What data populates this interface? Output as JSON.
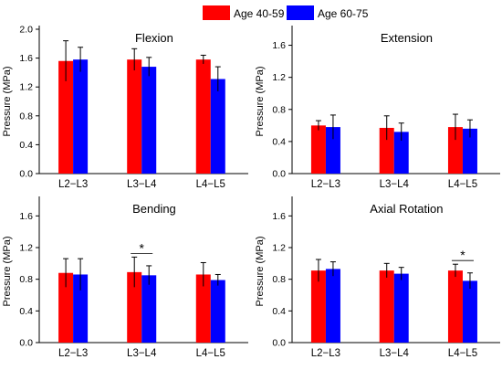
{
  "legend": {
    "items": [
      {
        "label": "Age 40-59",
        "color": "#ff0000"
      },
      {
        "label": "Age 60-75",
        "color": "#0000ff"
      }
    ]
  },
  "chart_data": [
    {
      "type": "bar",
      "title": "Flexion",
      "ylabel": "Pressure (MPa)",
      "ylim": [
        0,
        2.0
      ],
      "yticks": [
        "0.0",
        "0.4",
        "0.8",
        "1.2",
        "1.6",
        "2.0"
      ],
      "categories": [
        "L2−L3",
        "L3−L4",
        "L4−L5"
      ],
      "series": [
        {
          "name": "Age 40-59",
          "values": [
            1.56,
            1.58,
            1.58
          ],
          "errors": [
            0.28,
            0.15,
            0.06
          ]
        },
        {
          "name": "Age 60-75",
          "values": [
            1.58,
            1.48,
            1.31
          ],
          "errors": [
            0.17,
            0.13,
            0.17
          ]
        }
      ],
      "significance": []
    },
    {
      "type": "bar",
      "title": "Extension",
      "ylabel": "Pressure (MPa)",
      "ylim": [
        0,
        1.8
      ],
      "yticks": [
        "0.0",
        "0.4",
        "0.8",
        "1.2",
        "1.6"
      ],
      "categories": [
        "L2−L3",
        "L3−L4",
        "L4−L5"
      ],
      "series": [
        {
          "name": "Age 40-59",
          "values": [
            0.6,
            0.57,
            0.58
          ],
          "errors": [
            0.06,
            0.15,
            0.16
          ]
        },
        {
          "name": "Age 60-75",
          "values": [
            0.58,
            0.52,
            0.56
          ],
          "errors": [
            0.15,
            0.11,
            0.11
          ]
        }
      ],
      "significance": []
    },
    {
      "type": "bar",
      "title": "Bending",
      "ylabel": "Pressure (MPa)",
      "ylim": [
        0,
        1.8
      ],
      "yticks": [
        "0.0",
        "0.4",
        "0.8",
        "1.2",
        "1.6"
      ],
      "categories": [
        "L2−L3",
        "L3−L4",
        "L4−L5"
      ],
      "series": [
        {
          "name": "Age 40-59",
          "values": [
            0.88,
            0.89,
            0.86
          ],
          "errors": [
            0.18,
            0.19,
            0.15
          ]
        },
        {
          "name": "Age 60-75",
          "values": [
            0.86,
            0.85,
            0.79
          ],
          "errors": [
            0.2,
            0.12,
            0.07
          ]
        }
      ],
      "significance": [
        {
          "category_index": 1,
          "label": "*"
        }
      ]
    },
    {
      "type": "bar",
      "title": "Axial Rotation",
      "ylabel": "Pressure (MPa)",
      "ylim": [
        0,
        1.8
      ],
      "yticks": [
        "0.0",
        "0.4",
        "0.8",
        "1.2",
        "1.6"
      ],
      "categories": [
        "L2−L3",
        "L3−L4",
        "L4−L5"
      ],
      "series": [
        {
          "name": "Age 40-59",
          "values": [
            0.91,
            0.91,
            0.91
          ],
          "errors": [
            0.14,
            0.09,
            0.08
          ]
        },
        {
          "name": "Age 60-75",
          "values": [
            0.93,
            0.87,
            0.78
          ],
          "errors": [
            0.09,
            0.08,
            0.1
          ]
        }
      ],
      "significance": [
        {
          "category_index": 2,
          "label": "*"
        }
      ]
    }
  ]
}
